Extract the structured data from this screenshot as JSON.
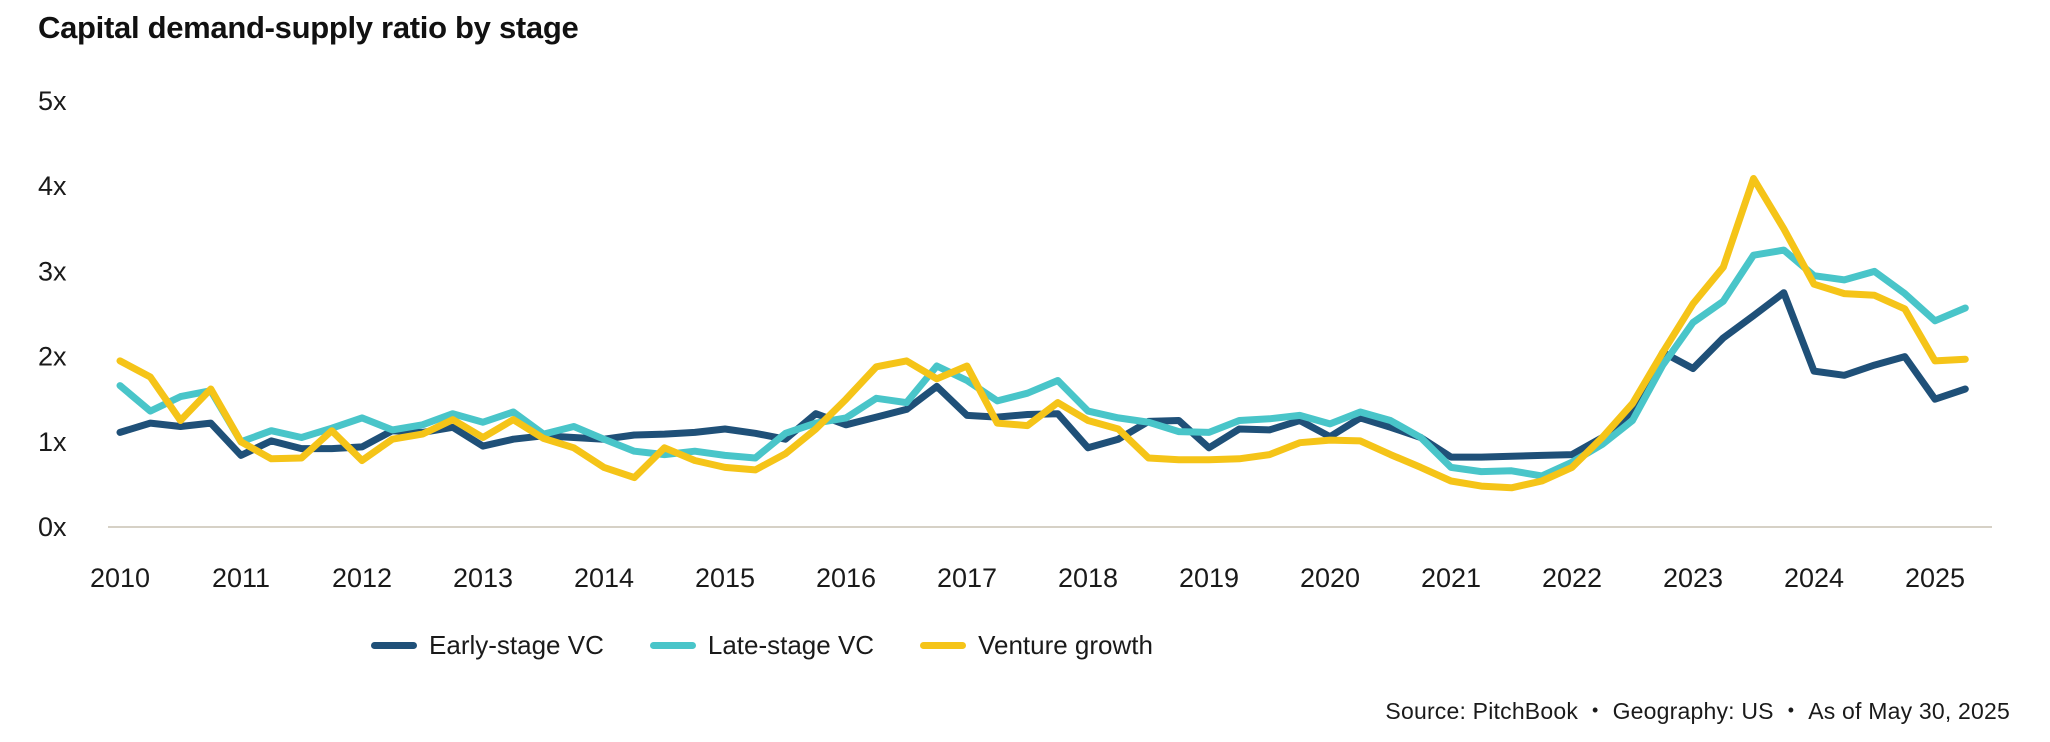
{
  "header": {
    "title": "Capital demand-supply ratio by stage"
  },
  "footer": {
    "source": "Source: PitchBook",
    "geography": "Geography: US",
    "as_of": "As of May 30, 2025",
    "separator": "•"
  },
  "chart_data": {
    "type": "line",
    "title": "Capital demand-supply ratio by stage",
    "x_start": 2010,
    "x_step_years": 0.25,
    "x_tick_labels": [
      "2010",
      "2011",
      "2012",
      "2013",
      "2014",
      "2015",
      "2016",
      "2017",
      "2018",
      "2019",
      "2020",
      "2021",
      "2022",
      "2023",
      "2024",
      "2025"
    ],
    "y_ticks": [
      "0x",
      "1x",
      "2x",
      "3x",
      "4x",
      "5x"
    ],
    "ylim": [
      0,
      5
    ],
    "grid": "baseline-only",
    "legend_position": "bottom-center",
    "axis_line_color": "#d6d1c6",
    "series": [
      {
        "name": "Early-stage VC",
        "color": "#1f5078",
        "values": [
          1.11,
          1.22,
          1.18,
          1.22,
          0.84,
          1.01,
          0.92,
          0.92,
          0.94,
          1.13,
          1.11,
          1.17,
          0.95,
          1.03,
          1.07,
          1.05,
          1.03,
          1.08,
          1.09,
          1.11,
          1.15,
          1.1,
          1.03,
          1.33,
          1.2,
          1.29,
          1.38,
          1.65,
          1.31,
          1.29,
          1.32,
          1.33,
          0.93,
          1.03,
          1.24,
          1.25,
          0.93,
          1.15,
          1.14,
          1.25,
          1.06,
          1.28,
          1.17,
          1.05,
          0.82,
          0.82,
          0.83,
          0.84,
          0.85,
          1.05,
          1.36,
          2.05,
          1.86,
          2.22,
          2.48,
          2.75,
          1.83,
          1.78,
          1.9,
          2.0,
          1.5,
          1.62
        ]
      },
      {
        "name": "Late-stage VC",
        "color": "#49c5c9",
        "values": [
          1.66,
          1.36,
          1.53,
          1.6,
          1.0,
          1.13,
          1.05,
          1.16,
          1.28,
          1.14,
          1.2,
          1.33,
          1.23,
          1.35,
          1.09,
          1.18,
          1.03,
          0.89,
          0.85,
          0.89,
          0.84,
          0.81,
          1.1,
          1.22,
          1.28,
          1.51,
          1.46,
          1.89,
          1.72,
          1.48,
          1.57,
          1.72,
          1.36,
          1.28,
          1.23,
          1.12,
          1.11,
          1.25,
          1.27,
          1.31,
          1.21,
          1.35,
          1.25,
          1.05,
          0.7,
          0.65,
          0.66,
          0.6,
          0.76,
          0.97,
          1.25,
          1.9,
          2.4,
          2.65,
          3.19,
          3.25,
          2.95,
          2.9,
          3.0,
          2.74,
          2.42,
          2.57
        ]
      },
      {
        "name": "Venture growth",
        "color": "#f5c418",
        "values": [
          1.95,
          1.76,
          1.25,
          1.62,
          1.0,
          0.8,
          0.81,
          1.13,
          0.78,
          1.03,
          1.09,
          1.26,
          1.05,
          1.26,
          1.04,
          0.93,
          0.7,
          0.58,
          0.93,
          0.78,
          0.7,
          0.67,
          0.86,
          1.15,
          1.5,
          1.88,
          1.95,
          1.74,
          1.89,
          1.22,
          1.19,
          1.46,
          1.25,
          1.15,
          0.81,
          0.79,
          0.79,
          0.8,
          0.85,
          0.99,
          1.02,
          1.01,
          0.85,
          0.7,
          0.54,
          0.48,
          0.46,
          0.54,
          0.7,
          1.05,
          1.45,
          2.05,
          2.62,
          3.05,
          4.09,
          3.5,
          2.85,
          2.74,
          2.72,
          2.56,
          1.95,
          1.97
        ]
      }
    ]
  }
}
